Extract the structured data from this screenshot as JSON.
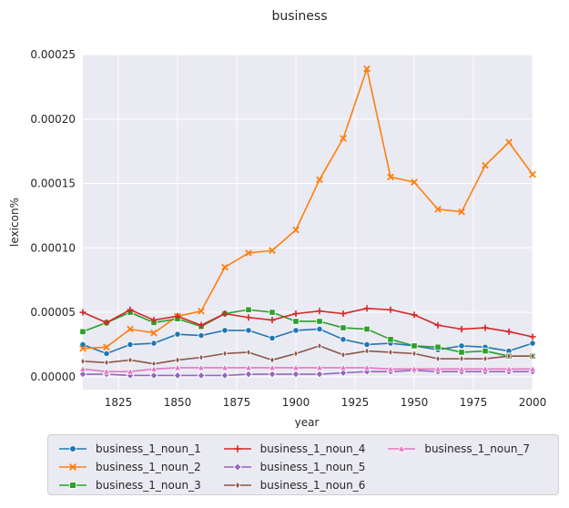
{
  "chart_data": {
    "type": "line",
    "title": "business",
    "xlabel": "year",
    "ylabel": "lexicon%",
    "xlim": [
      1810,
      2000
    ],
    "ylim": [
      -1e-05,
      0.00025
    ],
    "xticks": [
      1825,
      1850,
      1875,
      1900,
      1925,
      1950,
      1975,
      2000
    ],
    "yticks": [
      0.0,
      5e-05,
      0.0001,
      0.00015,
      0.0002,
      0.00025
    ],
    "ytick_labels": [
      "0.00000",
      "0.00005",
      "0.00010",
      "0.00015",
      "0.00020",
      "0.00025"
    ],
    "grid": true,
    "legend_position": "bottom",
    "x": [
      1810,
      1820,
      1830,
      1840,
      1850,
      1860,
      1870,
      1880,
      1890,
      1900,
      1910,
      1920,
      1930,
      1940,
      1950,
      1960,
      1970,
      1980,
      1990,
      2000
    ],
    "series": [
      {
        "name": "business_1_noun_1",
        "color": "#1f77b4",
        "marker": "circle",
        "values": [
          2.5e-05,
          1.8e-05,
          2.5e-05,
          2.6e-05,
          3.3e-05,
          3.2e-05,
          3.6e-05,
          3.6e-05,
          3e-05,
          3.6e-05,
          3.7e-05,
          2.9e-05,
          2.5e-05,
          2.6e-05,
          2.4e-05,
          2.1e-05,
          2.4e-05,
          2.3e-05,
          2e-05,
          2.6e-05
        ]
      },
      {
        "name": "business_1_noun_2",
        "color": "#ff7f0e",
        "marker": "x",
        "values": [
          2.2e-05,
          2.3e-05,
          3.7e-05,
          3.4e-05,
          4.7e-05,
          5.1e-05,
          8.5e-05,
          9.6e-05,
          9.8e-05,
          0.000114,
          0.000153,
          0.000185,
          0.000239,
          0.000155,
          0.000151,
          0.00013,
          0.000128,
          0.000164,
          0.000182,
          0.000157
        ]
      },
      {
        "name": "business_1_noun_3",
        "color": "#2ca02c",
        "marker": "square",
        "values": [
          3.5e-05,
          4.2e-05,
          5e-05,
          4.2e-05,
          4.5e-05,
          3.9e-05,
          4.9e-05,
          5.2e-05,
          5e-05,
          4.3e-05,
          4.3e-05,
          3.8e-05,
          3.7e-05,
          2.9e-05,
          2.4e-05,
          2.3e-05,
          1.9e-05,
          2e-05,
          1.6e-05,
          1.6e-05
        ]
      },
      {
        "name": "business_1_noun_4",
        "color": "#d62728",
        "marker": "plus",
        "values": [
          5e-05,
          4.2e-05,
          5.2e-05,
          4.4e-05,
          4.7e-05,
          4e-05,
          4.9e-05,
          4.6e-05,
          4.4e-05,
          4.9e-05,
          5.1e-05,
          4.9e-05,
          5.3e-05,
          5.2e-05,
          4.8e-05,
          4e-05,
          3.7e-05,
          3.8e-05,
          3.5e-05,
          3.1e-05
        ]
      },
      {
        "name": "business_1_noun_5",
        "color": "#9467bd",
        "marker": "diamond",
        "values": [
          2e-06,
          2e-06,
          1e-06,
          1e-06,
          1e-06,
          1e-06,
          1e-06,
          2e-06,
          2e-06,
          2e-06,
          2e-06,
          3e-06,
          4e-06,
          4e-06,
          5e-06,
          4e-06,
          4e-06,
          4e-06,
          4e-06,
          4e-06
        ]
      },
      {
        "name": "business_1_noun_6",
        "color": "#8c564b",
        "marker": "thin_diamond",
        "values": [
          1.2e-05,
          1.1e-05,
          1.3e-05,
          1e-05,
          1.3e-05,
          1.5e-05,
          1.8e-05,
          1.9e-05,
          1.3e-05,
          1.8e-05,
          2.4e-05,
          1.7e-05,
          2e-05,
          1.9e-05,
          1.8e-05,
          1.4e-05,
          1.4e-05,
          1.4e-05,
          1.6e-05,
          1.6e-05
        ]
      },
      {
        "name": "business_1_noun_7",
        "color": "#e377c2",
        "marker": "triangle",
        "values": [
          6e-06,
          4e-06,
          4e-06,
          6e-06,
          7e-06,
          7e-06,
          7e-06,
          7e-06,
          7e-06,
          7e-06,
          7e-06,
          7e-06,
          7e-06,
          6e-06,
          6e-06,
          6e-06,
          6e-06,
          6e-06,
          6e-06,
          6e-06
        ]
      }
    ]
  }
}
